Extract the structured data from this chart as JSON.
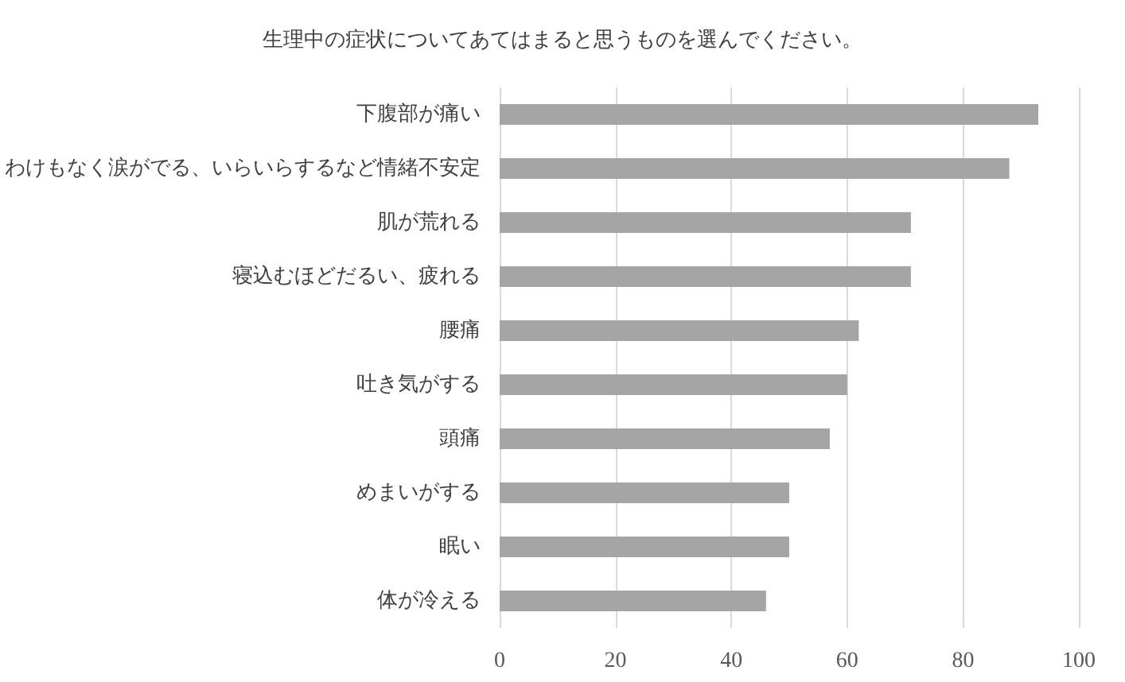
{
  "chart_data": {
    "type": "bar",
    "orientation": "horizontal",
    "title": "生理中の症状についてあてはまると思うものを選んでください。",
    "categories": [
      "下腹部が痛い",
      "わけもなく涙がでる、いらいらするなど情緒不安定",
      "肌が荒れる",
      "寝込むほどだるい、疲れる",
      "腰痛",
      "吐き気がする",
      "頭痛",
      "めまいがする",
      "眠い",
      "体が冷える"
    ],
    "values": [
      93,
      88,
      71,
      71,
      62,
      60,
      57,
      50,
      50,
      46
    ],
    "color": "#a5a5a5",
    "xlim": [
      0,
      100
    ],
    "xticks": [
      0,
      20,
      40,
      60,
      80,
      100
    ],
    "grid": "x"
  }
}
